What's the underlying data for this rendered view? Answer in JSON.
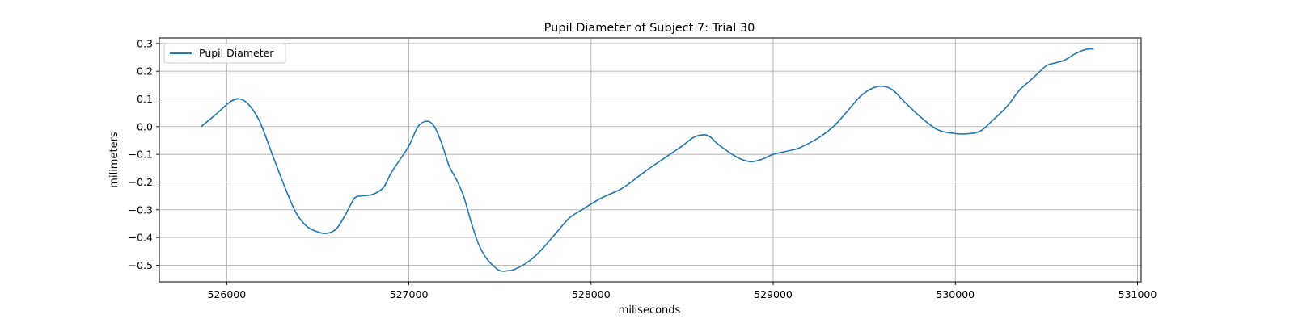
{
  "chart_data": {
    "type": "line",
    "title": "Pupil Diameter of Subject 7: Trial 30",
    "xlabel": "miliseconds",
    "ylabel": "milimeters",
    "xlim": [
      525630,
      531020
    ],
    "ylim": [
      -0.56,
      0.32
    ],
    "xticks": [
      526000,
      527000,
      528000,
      529000,
      530000,
      531000
    ],
    "yticks": [
      0.3,
      0.2,
      0.1,
      0.0,
      -0.1,
      -0.2,
      -0.3,
      -0.4,
      -0.5
    ],
    "ytick_labels": [
      "0.3",
      "0.2",
      "0.1",
      "0.0",
      "−0.1",
      "−0.2",
      "−0.3",
      "−0.4",
      "−0.5"
    ],
    "grid": true,
    "legend": {
      "location": "upper left",
      "entries": [
        "Pupil Diameter"
      ]
    },
    "series": [
      {
        "name": "Pupil Diameter",
        "color": "#1f77b4",
        "x": [
          525860,
          525950,
          526020,
          526070,
          526120,
          526180,
          526250,
          526320,
          526380,
          526440,
          526500,
          526550,
          526600,
          526650,
          526700,
          526740,
          526800,
          526860,
          526900,
          526950,
          527000,
          527050,
          527100,
          527140,
          527180,
          527220,
          527260,
          527300,
          527340,
          527380,
          527420,
          527460,
          527500,
          527540,
          527580,
          527650,
          527720,
          527800,
          527880,
          527950,
          528050,
          528150,
          528200,
          528300,
          528400,
          528500,
          528560,
          528610,
          528650,
          528700,
          528800,
          528860,
          528900,
          528950,
          529000,
          529100,
          529150,
          529250,
          529330,
          529400,
          529480,
          529550,
          529610,
          529660,
          529720,
          529800,
          529900,
          530000,
          530080,
          530140,
          530200,
          530280,
          530350,
          530400,
          530450,
          530500,
          530550,
          530600,
          530650,
          530700,
          530730,
          530760
        ],
        "y": [
          0.0,
          0.05,
          0.09,
          0.1,
          0.08,
          0.02,
          -0.1,
          -0.22,
          -0.31,
          -0.36,
          -0.38,
          -0.385,
          -0.37,
          -0.32,
          -0.26,
          -0.25,
          -0.245,
          -0.22,
          -0.17,
          -0.12,
          -0.07,
          0.0,
          0.02,
          0.0,
          -0.06,
          -0.14,
          -0.19,
          -0.25,
          -0.34,
          -0.42,
          -0.47,
          -0.5,
          -0.52,
          -0.52,
          -0.515,
          -0.49,
          -0.45,
          -0.39,
          -0.33,
          -0.3,
          -0.26,
          -0.23,
          -0.21,
          -0.16,
          -0.115,
          -0.07,
          -0.04,
          -0.03,
          -0.035,
          -0.065,
          -0.11,
          -0.125,
          -0.125,
          -0.115,
          -0.1,
          -0.085,
          -0.075,
          -0.04,
          0.0,
          0.05,
          0.11,
          0.14,
          0.145,
          0.13,
          0.09,
          0.04,
          -0.01,
          -0.025,
          -0.025,
          -0.015,
          0.02,
          0.07,
          0.13,
          0.16,
          0.19,
          0.22,
          0.23,
          0.24,
          0.26,
          0.275,
          0.28,
          0.28
        ]
      }
    ]
  }
}
